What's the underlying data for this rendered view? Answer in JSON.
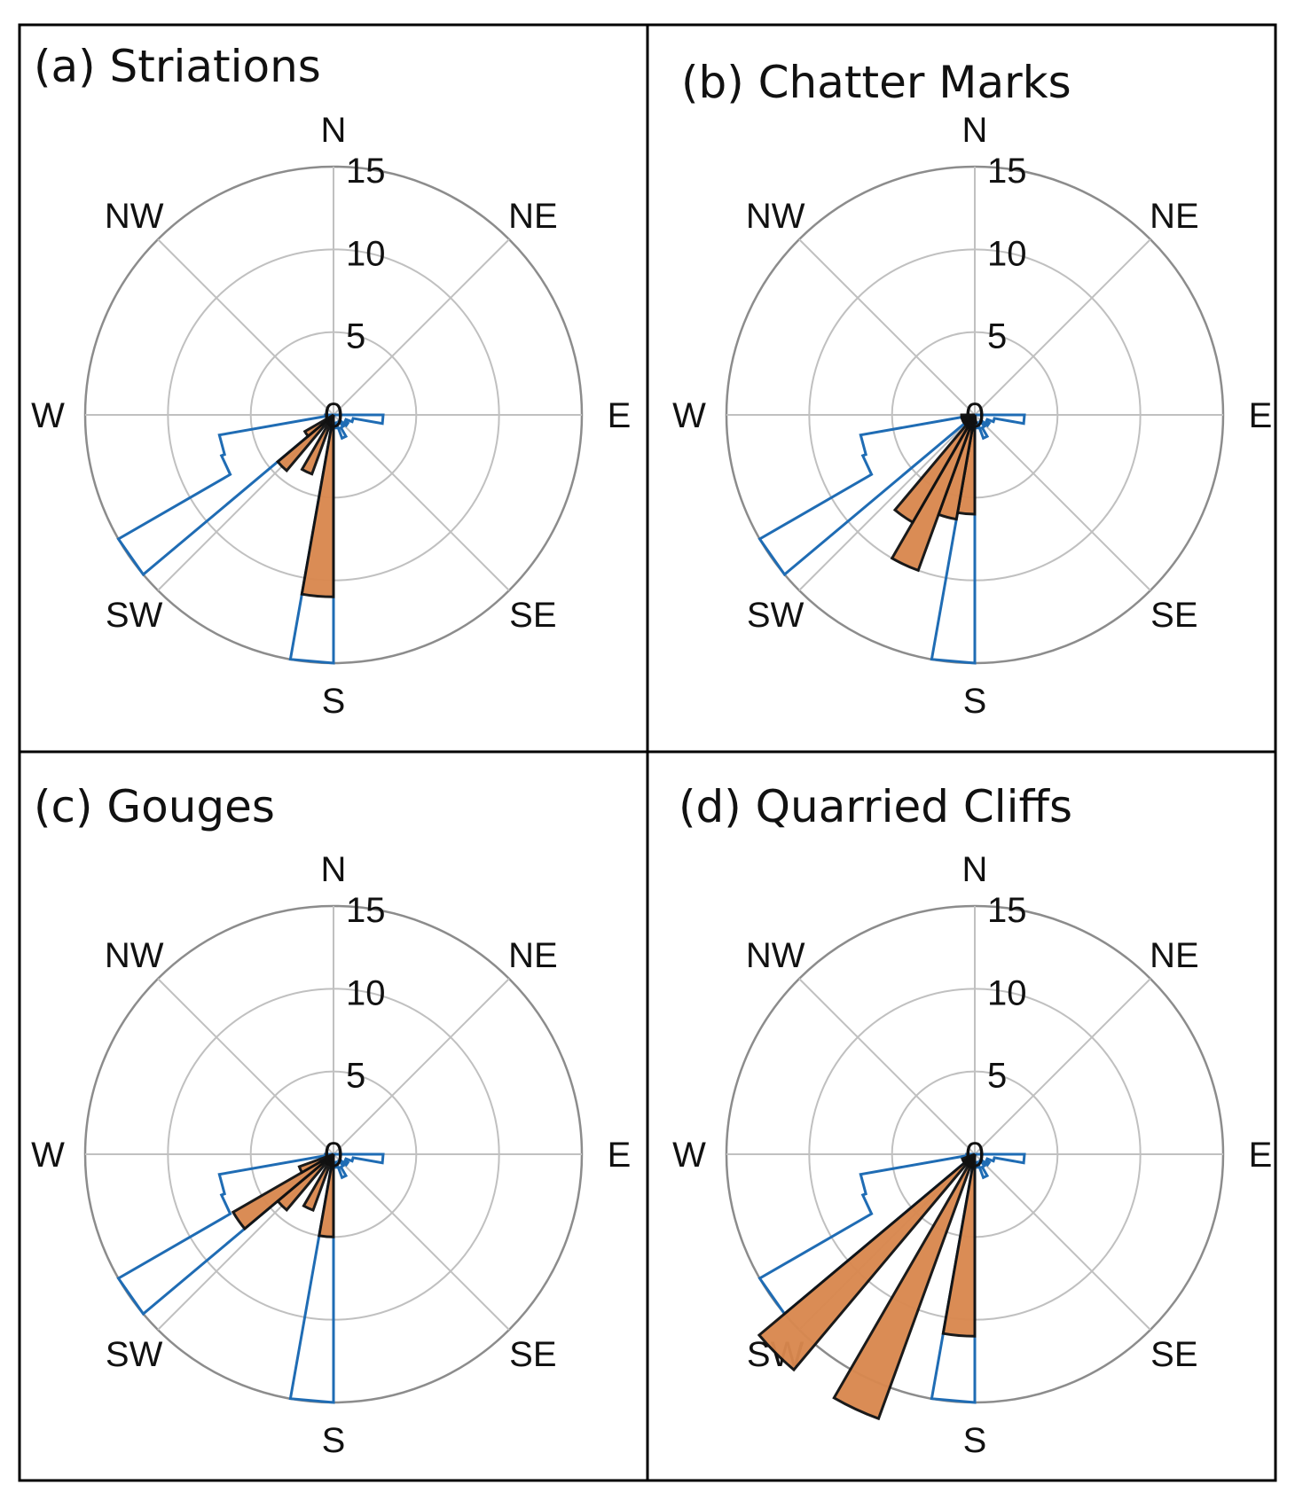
{
  "colors": {
    "bar_fill": "#d9884f",
    "bar_stroke": "#111111",
    "outline": "#1f6cb4",
    "grid": "#c0c0c0",
    "outer_ring": "#8c8c8c"
  },
  "chart_data": [
    {
      "type": "polar-bar",
      "panel": "(a)",
      "title": "Striations",
      "rlim": [
        0,
        15
      ],
      "rticks": [
        0,
        5,
        10,
        15
      ],
      "rtick_labels": [
        "0",
        "5",
        "10",
        "15"
      ],
      "direction_labels": [
        "N",
        "NE",
        "E",
        "SE",
        "S",
        "SW",
        "W",
        "NW"
      ],
      "bin_width_deg": 10,
      "bars": [
        {
          "azimuth": 185,
          "value": 11
        },
        {
          "azimuth": 205,
          "value": 3.8
        },
        {
          "azimuth": 225,
          "value": 4.4
        },
        {
          "azimuth": 235,
          "value": 2.0
        }
      ],
      "outline": [
        {
          "azimuth": 95,
          "value": 3.0
        },
        {
          "azimuth": 105,
          "value": 1.2
        },
        {
          "azimuth": 115,
          "value": 0.8
        },
        {
          "azimuth": 125,
          "value": 1.0
        },
        {
          "azimuth": 135,
          "value": 0.5
        },
        {
          "azimuth": 145,
          "value": 0.9
        },
        {
          "azimuth": 155,
          "value": 1.5
        },
        {
          "azimuth": 165,
          "value": 0.5
        },
        {
          "azimuth": 175,
          "value": 0.8
        },
        {
          "azimuth": 185,
          "value": 15
        },
        {
          "azimuth": 195,
          "value": 0.6
        },
        {
          "azimuth": 205,
          "value": 0.5
        },
        {
          "azimuth": 215,
          "value": 0.4
        },
        {
          "azimuth": 225,
          "value": 0.6
        },
        {
          "azimuth": 235,
          "value": 15
        },
        {
          "azimuth": 245,
          "value": 7.2
        },
        {
          "azimuth": 255,
          "value": 7.0
        },
        {
          "azimuth": 265,
          "value": 0.5
        }
      ]
    },
    {
      "type": "polar-bar",
      "panel": "(b)",
      "title": "Chatter Marks",
      "rlim": [
        0,
        15
      ],
      "rticks": [
        0,
        5,
        10,
        15
      ],
      "rtick_labels": [
        "0",
        "5",
        "10",
        "15"
      ],
      "direction_labels": [
        "N",
        "NE",
        "E",
        "SE",
        "S",
        "SW",
        "W",
        "NW"
      ],
      "bin_width_deg": 10,
      "bars": [
        {
          "azimuth": 175,
          "value": 0.5
        },
        {
          "azimuth": 185,
          "value": 6.0
        },
        {
          "azimuth": 195,
          "value": 6.4
        },
        {
          "azimuth": 205,
          "value": 10.0
        },
        {
          "azimuth": 215,
          "value": 7.5
        },
        {
          "azimuth": 225,
          "value": 0.8
        },
        {
          "azimuth": 235,
          "value": 0.8
        },
        {
          "azimuth": 245,
          "value": 0.8
        },
        {
          "azimuth": 255,
          "value": 0.8
        },
        {
          "azimuth": 265,
          "value": 0.8
        }
      ],
      "outline": [
        {
          "azimuth": 95,
          "value": 3.0
        },
        {
          "azimuth": 105,
          "value": 1.2
        },
        {
          "azimuth": 115,
          "value": 0.8
        },
        {
          "azimuth": 125,
          "value": 1.0
        },
        {
          "azimuth": 135,
          "value": 0.5
        },
        {
          "azimuth": 145,
          "value": 0.9
        },
        {
          "azimuth": 155,
          "value": 1.5
        },
        {
          "azimuth": 165,
          "value": 0.5
        },
        {
          "azimuth": 175,
          "value": 0.8
        },
        {
          "azimuth": 185,
          "value": 15
        },
        {
          "azimuth": 195,
          "value": 0.6
        },
        {
          "azimuth": 205,
          "value": 0.5
        },
        {
          "azimuth": 215,
          "value": 0.4
        },
        {
          "azimuth": 225,
          "value": 0.6
        },
        {
          "azimuth": 235,
          "value": 15
        },
        {
          "azimuth": 245,
          "value": 7.2
        },
        {
          "azimuth": 255,
          "value": 7.0
        },
        {
          "azimuth": 265,
          "value": 0.5
        }
      ]
    },
    {
      "type": "polar-bar",
      "panel": "(c)",
      "title": "Gouges",
      "rlim": [
        0,
        15
      ],
      "rticks": [
        0,
        5,
        10,
        15
      ],
      "rtick_labels": [
        "0",
        "5",
        "10",
        "15"
      ],
      "direction_labels": [
        "N",
        "NE",
        "E",
        "SE",
        "S",
        "SW",
        "W",
        "NW"
      ],
      "bin_width_deg": 10,
      "bars": [
        {
          "azimuth": 185,
          "value": 5.0
        },
        {
          "azimuth": 195,
          "value": 0.6
        },
        {
          "azimuth": 205,
          "value": 3.6
        },
        {
          "azimuth": 215,
          "value": 0.7
        },
        {
          "azimuth": 225,
          "value": 4.4
        },
        {
          "azimuth": 235,
          "value": 7.0
        },
        {
          "azimuth": 245,
          "value": 2.2
        }
      ],
      "outline": [
        {
          "azimuth": 95,
          "value": 3.0
        },
        {
          "azimuth": 105,
          "value": 1.2
        },
        {
          "azimuth": 115,
          "value": 0.8
        },
        {
          "azimuth": 125,
          "value": 1.0
        },
        {
          "azimuth": 135,
          "value": 0.5
        },
        {
          "azimuth": 145,
          "value": 0.9
        },
        {
          "azimuth": 155,
          "value": 1.5
        },
        {
          "azimuth": 165,
          "value": 0.5
        },
        {
          "azimuth": 175,
          "value": 0.8
        },
        {
          "azimuth": 185,
          "value": 15
        },
        {
          "azimuth": 195,
          "value": 0.6
        },
        {
          "azimuth": 205,
          "value": 0.5
        },
        {
          "azimuth": 215,
          "value": 0.4
        },
        {
          "azimuth": 225,
          "value": 0.6
        },
        {
          "azimuth": 235,
          "value": 15
        },
        {
          "azimuth": 245,
          "value": 7.2
        },
        {
          "azimuth": 255,
          "value": 7.0
        },
        {
          "azimuth": 265,
          "value": 0.5
        }
      ]
    },
    {
      "type": "polar-bar",
      "panel": "(d)",
      "title": "Quarried Cliffs",
      "rlim": [
        0,
        15
      ],
      "rticks": [
        0,
        5,
        10,
        15
      ],
      "rtick_labels": [
        "0",
        "5",
        "10",
        "15"
      ],
      "direction_labels": [
        "N",
        "NE",
        "E",
        "SE",
        "S",
        "SW",
        "W",
        "NW"
      ],
      "bin_width_deg": 10,
      "bars": [
        {
          "azimuth": 185,
          "value": 11
        },
        {
          "azimuth": 195,
          "value": 0.8
        },
        {
          "azimuth": 205,
          "value": 17
        },
        {
          "azimuth": 215,
          "value": 0.8
        },
        {
          "azimuth": 225,
          "value": 17
        },
        {
          "azimuth": 235,
          "value": 0.8
        },
        {
          "azimuth": 245,
          "value": 0.8
        }
      ],
      "outline": [
        {
          "azimuth": 95,
          "value": 3.0
        },
        {
          "azimuth": 105,
          "value": 1.2
        },
        {
          "azimuth": 115,
          "value": 0.8
        },
        {
          "azimuth": 125,
          "value": 1.0
        },
        {
          "azimuth": 135,
          "value": 0.5
        },
        {
          "azimuth": 145,
          "value": 0.9
        },
        {
          "azimuth": 155,
          "value": 1.5
        },
        {
          "azimuth": 165,
          "value": 0.5
        },
        {
          "azimuth": 175,
          "value": 0.8
        },
        {
          "azimuth": 185,
          "value": 15
        },
        {
          "azimuth": 195,
          "value": 0.6
        },
        {
          "azimuth": 205,
          "value": 0.5
        },
        {
          "azimuth": 215,
          "value": 0.4
        },
        {
          "azimuth": 225,
          "value": 0.6
        },
        {
          "azimuth": 235,
          "value": 15
        },
        {
          "azimuth": 245,
          "value": 7.2
        },
        {
          "azimuth": 255,
          "value": 7.0
        },
        {
          "azimuth": 265,
          "value": 0.5
        }
      ]
    }
  ]
}
